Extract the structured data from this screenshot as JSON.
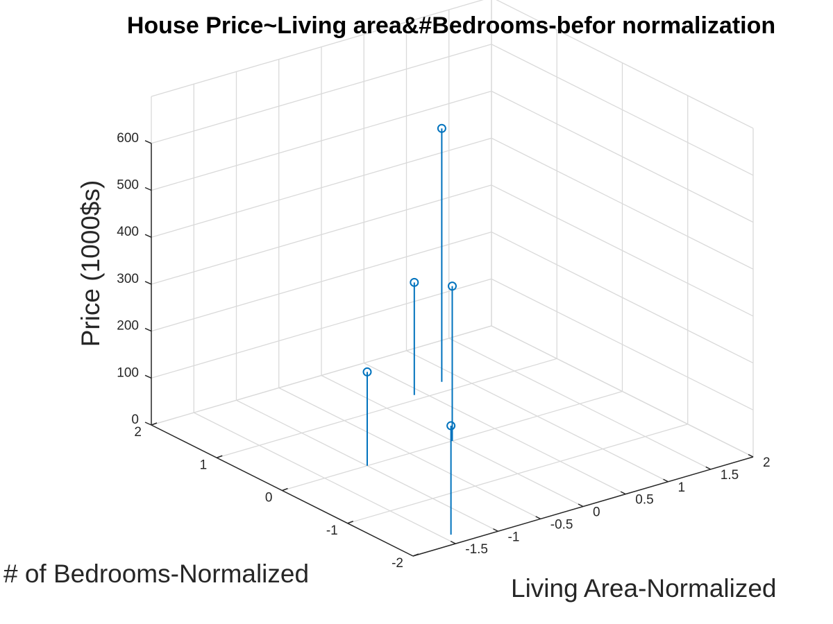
{
  "chart_data": {
    "type": "scatter",
    "plot_style": "stem3",
    "title": "House Price~Living area&#Bedrooms-befor normalization",
    "xlabel": "Living Area-Normalized",
    "ylabel": "# of Bedrooms-Normalized",
    "zlabel": "Price (1000$s)",
    "xlim": [
      -2,
      2
    ],
    "ylim": [
      -2,
      2
    ],
    "zlim": [
      0,
      700
    ],
    "x_ticks": [
      "-1.5",
      "-1",
      "-0.5",
      "0",
      "0.5",
      "1",
      "1.5",
      "2"
    ],
    "y_ticks": [
      "-2",
      "-1",
      "0",
      "1",
      "2"
    ],
    "z_ticks": [
      "0",
      "100",
      "200",
      "300",
      "400",
      "500",
      "600"
    ],
    "grid": true,
    "color": "#0072bd",
    "points": [
      {
        "x": -1.0,
        "y": 0.0,
        "z": 199.9
      },
      {
        "x": -1.4,
        "y": -1.8,
        "z": 232.0
      },
      {
        "x": 0.0,
        "y": 0.0,
        "z": 329.9
      },
      {
        "x": 0.4,
        "y": 1.1,
        "z": 239.9
      },
      {
        "x": 0.8,
        "y": 1.2,
        "z": 539.9
      }
    ]
  }
}
